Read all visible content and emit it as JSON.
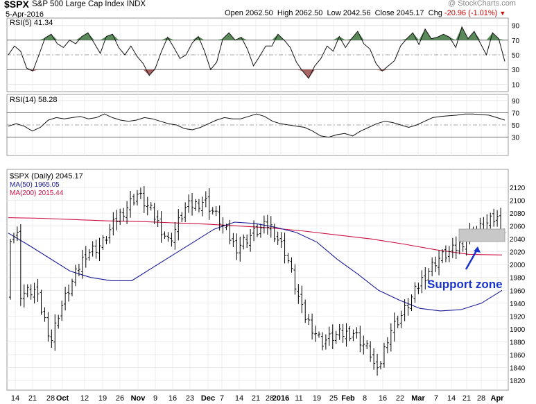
{
  "header": {
    "symbol": "$SPX",
    "name": "S&P 500 Large Cap Index",
    "exchange": "INDX",
    "date": "5-Apr-2016",
    "watermark": "@ StockCharts.com",
    "open_label": "Open",
    "open": "2062.50",
    "high_label": "High",
    "high": "2062.50",
    "low_label": "Low",
    "low": "2042.56",
    "close_label": "Close",
    "close": "2045.17",
    "chg_label": "Chg",
    "chg": "-20.96 (-1.01%)",
    "chg_color": "#cc0000"
  },
  "rsi5": {
    "label": "RSI(5) 41.34",
    "ticks": [
      90,
      70,
      50,
      30,
      10
    ]
  },
  "rsi14": {
    "label": "RSI(14) 58.28",
    "ticks": [
      90,
      70,
      50,
      30
    ]
  },
  "price": {
    "label": "$SPX (Daily) 2045.17",
    "ma50_label": "MA(50) 1965.05",
    "ma200_label": "MA(200) 2015.44",
    "ma50_color": "#1a1a99",
    "ma200_color": "#cc1144",
    "ticks": [
      2120,
      2100,
      2080,
      2060,
      2040,
      2020,
      2000,
      1980,
      1960,
      1940,
      1920,
      1900,
      1880,
      1860,
      1840,
      1820
    ]
  },
  "annotation": {
    "text": "Support zone",
    "color": "#1a33cc"
  },
  "colors": {
    "overbought_fill": "#5a8a5a",
    "oversold_fill": "#a86464",
    "support_fill": "#c8c8c8"
  },
  "chart_data": {
    "type": "ohlc-bar",
    "title": "$SPX S&P 500 Large Cap Index INDX",
    "x_tick_labels": [
      "14",
      "21",
      "28",
      "Oct",
      "12",
      "19",
      "26",
      "Nov",
      "9",
      "16",
      "23",
      "Dec",
      "7",
      "14",
      "21",
      "28",
      "2016",
      "11",
      "19",
      "25",
      "Feb",
      "8",
      "16",
      "22",
      "Mar",
      "7",
      "14",
      "21",
      "28",
      "Apr"
    ],
    "price_range": [
      1808,
      2130
    ],
    "price_close_points": [
      [
        "2015-09-14",
        1953
      ],
      [
        "2015-09-21",
        1960
      ],
      [
        "2015-09-28",
        1883
      ],
      [
        "2015-10-01",
        1925
      ],
      [
        "2015-10-12",
        2017
      ],
      [
        "2015-10-19",
        2031
      ],
      [
        "2015-10-26",
        2075
      ],
      [
        "2015-11-03",
        2110
      ],
      [
        "2015-11-09",
        2081
      ],
      [
        "2015-11-16",
        2035
      ],
      [
        "2015-11-23",
        2088
      ],
      [
        "2015-12-01",
        2100
      ],
      [
        "2015-12-07",
        2070
      ],
      [
        "2015-12-14",
        2026
      ],
      [
        "2015-12-21",
        2048
      ],
      [
        "2015-12-28",
        2063
      ],
      [
        "2016-01-04",
        2018
      ],
      [
        "2016-01-11",
        1924
      ],
      [
        "2016-01-19",
        1880
      ],
      [
        "2016-01-25",
        1890
      ],
      [
        "2016-02-01",
        1895
      ],
      [
        "2016-02-08",
        1865
      ],
      [
        "2016-02-11",
        1829
      ],
      [
        "2016-02-16",
        1895
      ],
      [
        "2016-02-22",
        1925
      ],
      [
        "2016-03-01",
        1978
      ],
      [
        "2016-03-07",
        2008
      ],
      [
        "2016-03-14",
        2022
      ],
      [
        "2016-03-21",
        2048
      ],
      [
        "2016-03-28",
        2063
      ],
      [
        "2016-04-01",
        2073
      ],
      [
        "2016-04-05",
        2045
      ]
    ],
    "ma50": [
      2049,
      2030,
      2010,
      1990,
      1980,
      1975,
      1975,
      1995,
      2015,
      2035,
      2055,
      2066,
      2064,
      2058,
      2050,
      2035,
      2008,
      1985,
      1960,
      1945,
      1932,
      1928,
      1930,
      1940,
      1960
    ],
    "ma200": [
      2073,
      2072,
      2070,
      2068,
      2067,
      2065,
      2063,
      2060,
      2057,
      2052,
      2046,
      2040,
      2032,
      2023,
      2016,
      2015
    ],
    "rsi5_range": [
      0,
      100
    ],
    "rsi14_range": [
      0,
      100
    ],
    "rsi5_values": [
      50,
      62,
      55,
      32,
      28,
      50,
      73,
      78,
      65,
      60,
      70,
      65,
      75,
      80,
      66,
      52,
      75,
      78,
      60,
      50,
      62,
      48,
      38,
      22,
      32,
      55,
      74,
      60,
      45,
      50,
      66,
      75,
      55,
      30,
      40,
      72,
      80,
      70,
      74,
      58,
      35,
      48,
      62,
      62,
      78,
      70,
      60,
      40,
      28,
      18,
      35,
      45,
      62,
      55,
      75,
      60,
      72,
      82,
      65,
      58,
      38,
      28,
      35,
      42,
      62,
      72,
      80,
      64,
      85,
      72,
      74,
      78,
      74,
      60,
      88,
      72,
      82,
      66,
      50,
      80,
      72,
      41
    ],
    "rsi14_values": [
      48,
      52,
      48,
      40,
      46,
      58,
      62,
      60,
      62,
      64,
      60,
      62,
      68,
      62,
      58,
      56,
      58,
      62,
      60,
      56,
      52,
      50,
      44,
      42,
      46,
      52,
      58,
      62,
      60,
      60,
      64,
      68,
      64,
      56,
      52,
      50,
      48,
      46,
      40,
      32,
      30,
      34,
      36,
      32,
      40,
      46,
      52,
      56,
      54,
      50,
      46,
      50,
      56,
      62,
      64,
      65,
      66,
      68,
      68,
      67,
      66,
      62,
      58
    ]
  }
}
